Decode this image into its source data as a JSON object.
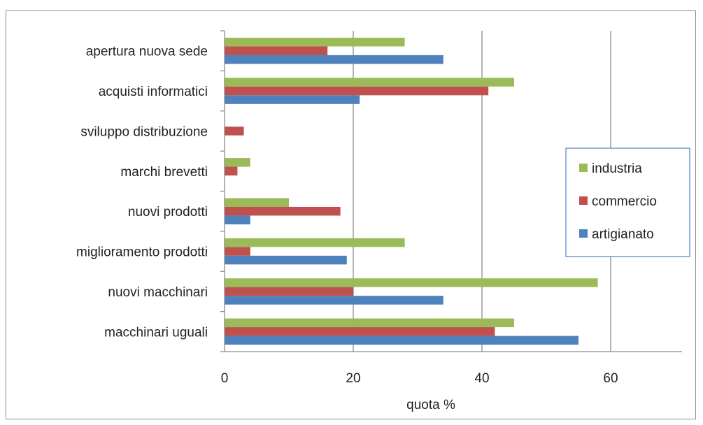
{
  "chart_data": {
    "type": "bar",
    "orientation": "horizontal",
    "categories": [
      "apertura nuova sede",
      "acquisti informatici",
      "sviluppo distribuzione",
      "marchi brevetti",
      "nuovi prodotti",
      "miglioramento prodotti",
      "nuovi macchinari",
      "macchinari uguali"
    ],
    "series": [
      {
        "name": "industria",
        "color": "#9bbb59",
        "values": [
          28,
          45,
          0,
          4,
          10,
          28,
          58,
          45
        ]
      },
      {
        "name": "commercio",
        "color": "#c0504d",
        "values": [
          16,
          41,
          3,
          2,
          18,
          4,
          20,
          42
        ]
      },
      {
        "name": "artigianato",
        "color": "#4f81bd",
        "values": [
          34,
          21,
          0,
          0,
          4,
          19,
          34,
          55
        ]
      }
    ],
    "title": "",
    "xlabel": "quota %",
    "ylabel": "",
    "xlim": [
      0,
      69
    ],
    "xticks": [
      0,
      20,
      40,
      60
    ],
    "grid": "vertical major gridlines",
    "legend_position": "right",
    "legend_order": [
      "industria",
      "commercio",
      "artigianato"
    ]
  }
}
